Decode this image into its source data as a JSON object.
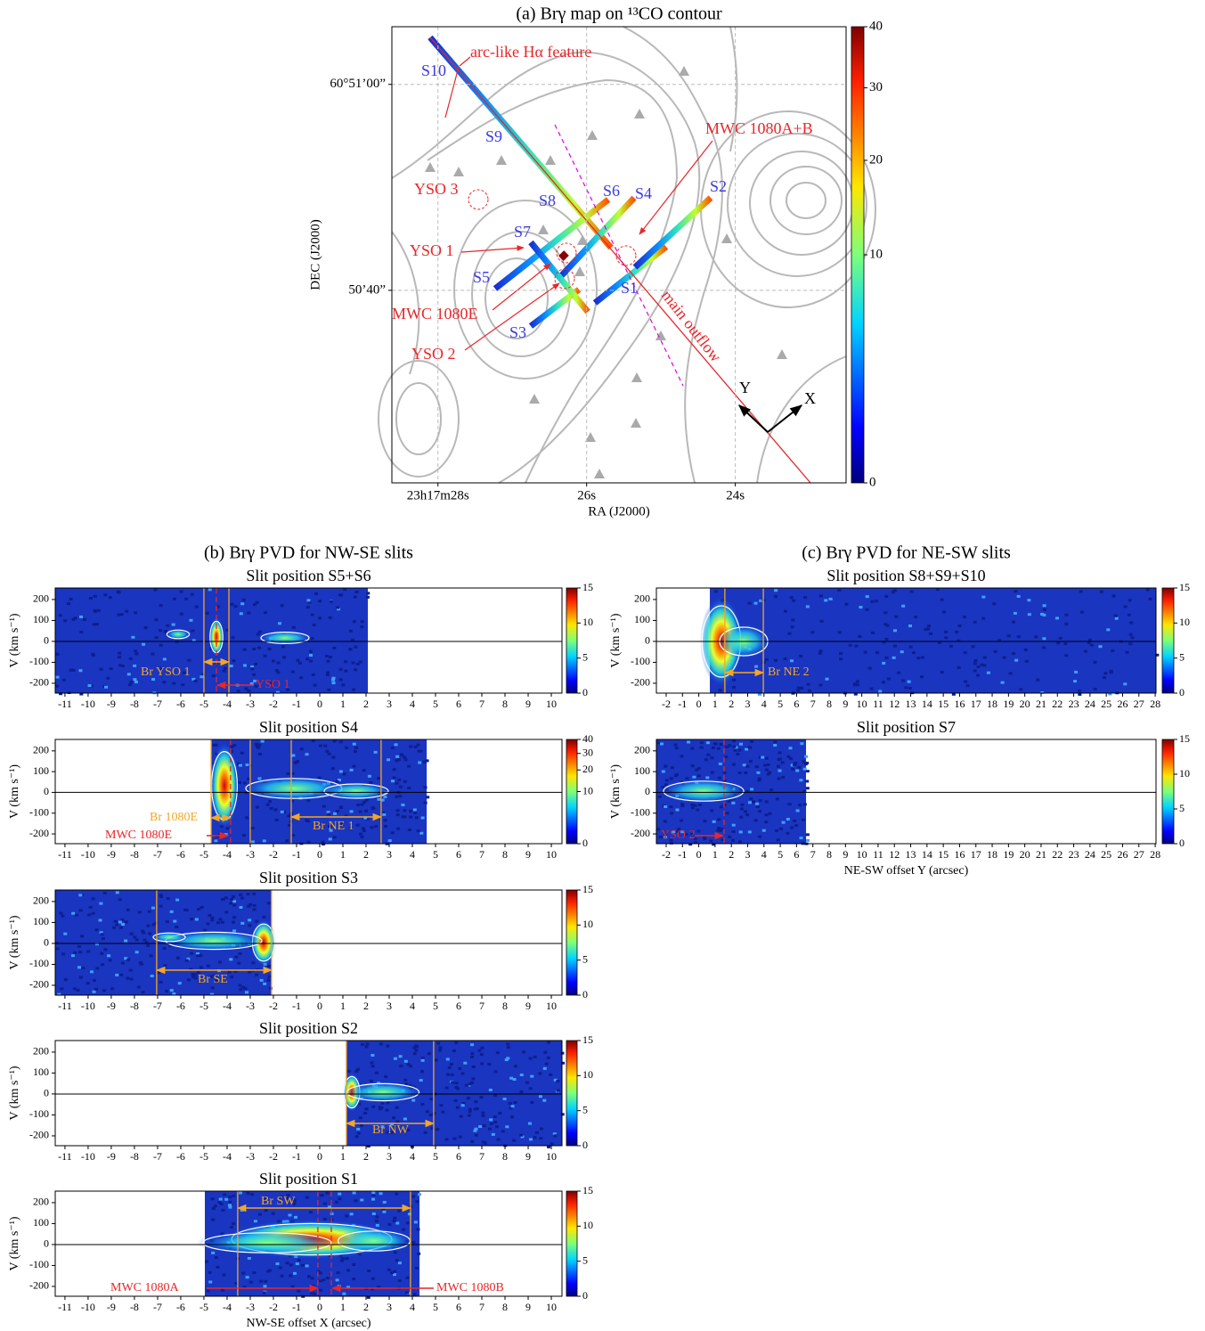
{
  "chart_data": [
    {
      "type": "map",
      "title": "(a) Brγ map on ¹³CO contour",
      "xlabel": "RA (J2000)",
      "ylabel": "DEC (J2000)",
      "xticks": [
        {
          "value": 28,
          "label": "23h17m28s"
        },
        {
          "value": 26,
          "label": "26s"
        },
        {
          "value": 24,
          "label": "24s"
        }
      ],
      "xlim": [
        28.62,
        22.51
      ],
      "yticks": [
        {
          "value": 60,
          "label": "60°51’00”"
        },
        {
          "value": 40,
          "label": "50’40”"
        }
      ],
      "ylim": [
        21.3,
        65.6
      ],
      "grid": true,
      "colorbar": {
        "lim": [
          0,
          40
        ],
        "ticks": [
          0,
          10,
          20,
          30,
          40
        ],
        "scale": "sqrt"
      },
      "annotations": [
        {
          "text": "arc-like Hα feature",
          "color": "#e8262a"
        },
        {
          "text": "MWC 1080A+B",
          "color": "#e8262a"
        },
        {
          "text": "YSO 3",
          "color": "#e8262a"
        },
        {
          "text": "YSO 1",
          "color": "#e8262a"
        },
        {
          "text": "MWC 1080E",
          "color": "#e8262a"
        },
        {
          "text": "YSO 2",
          "color": "#e8262a"
        },
        {
          "text": "main outflow",
          "color": "#e8262a"
        },
        {
          "text": "S10",
          "color": "#3a3ae0"
        },
        {
          "text": "S9",
          "color": "#3a3ae0"
        },
        {
          "text": "S8",
          "color": "#3a3ae0"
        },
        {
          "text": "S7",
          "color": "#3a3ae0"
        },
        {
          "text": "S6",
          "color": "#3a3ae0"
        },
        {
          "text": "S4",
          "color": "#3a3ae0"
        },
        {
          "text": "S2",
          "color": "#3a3ae0"
        },
        {
          "text": "S5",
          "color": "#3a3ae0"
        },
        {
          "text": "S1",
          "color": "#3a3ae0"
        },
        {
          "text": "S3",
          "color": "#3a3ae0"
        },
        {
          "text": "Y",
          "color": "#000000"
        },
        {
          "text": "X",
          "color": "#000000"
        }
      ]
    },
    {
      "type": "pvd",
      "group_title": "(b) Brγ PVD for NW-SE slits",
      "title": "Slit position S5+S6",
      "ylabel": "V (km s⁻¹)",
      "xticks": [
        -11,
        -10,
        -9,
        -8,
        -7,
        -6,
        -5,
        -4,
        -3,
        -2,
        -1,
        0,
        1,
        2,
        3,
        4,
        5,
        6,
        7,
        8,
        9,
        10
      ],
      "xlim": [
        -11.42,
        10.46
      ],
      "yticks": [
        -200,
        -100,
        0,
        100,
        200
      ],
      "ylim": [
        -247,
        255
      ],
      "extent": [
        -11.42,
        2.08
      ],
      "colorbar": {
        "lim": [
          0,
          15
        ],
        "ticks": [
          0,
          5,
          10,
          15
        ],
        "scale": "linear"
      },
      "vlines": [
        {
          "value": -5.0,
          "color": "#f5a623"
        },
        {
          "value": -3.92,
          "color": "#f5a623"
        },
        {
          "value": -4.46,
          "color": "#e8262a",
          "dashed": true
        }
      ],
      "annotations": [
        {
          "text": "Br YSO 1",
          "color": "#f5a623"
        },
        {
          "text": "YSO 1",
          "color": "#e8262a"
        }
      ]
    },
    {
      "type": "pvd",
      "title": "Slit position S4",
      "ylabel": "V (km s⁻¹)",
      "xticks": [
        -11,
        -10,
        -9,
        -8,
        -7,
        -6,
        -5,
        -4,
        -3,
        -2,
        -1,
        0,
        1,
        2,
        3,
        4,
        5,
        6,
        7,
        8,
        9,
        10
      ],
      "xlim": [
        -11.42,
        10.46
      ],
      "yticks": [
        -200,
        -100,
        0,
        100,
        200
      ],
      "ylim": [
        -247,
        255
      ],
      "extent": [
        -4.69,
        4.62
      ],
      "colorbar": {
        "lim": [
          0,
          40
        ],
        "ticks": [
          0,
          10,
          20,
          30,
          40
        ],
        "scale": "sqrt"
      },
      "vlines": [
        {
          "value": -4.69,
          "color": "#f5a623"
        },
        {
          "value": -3.85,
          "color": "#e8262a",
          "dashed": true
        },
        {
          "value": -3.0,
          "color": "#f5a623"
        },
        {
          "value": -1.23,
          "color": "#f5a623"
        },
        {
          "value": 2.65,
          "color": "#f5a623"
        }
      ],
      "annotations": [
        {
          "text": "Br 1080E",
          "color": "#f5a623"
        },
        {
          "text": "MWC 1080E",
          "color": "#e8262a"
        },
        {
          "text": "Br NE 1",
          "color": "#f5a623"
        }
      ]
    },
    {
      "type": "pvd",
      "title": "Slit position S3",
      "ylabel": "V (km s⁻¹)",
      "xticks": [
        -11,
        -10,
        -9,
        -8,
        -7,
        -6,
        -5,
        -4,
        -3,
        -2,
        -1,
        0,
        1,
        2,
        3,
        4,
        5,
        6,
        7,
        8,
        9,
        10
      ],
      "xlim": [
        -11.42,
        10.46
      ],
      "yticks": [
        -200,
        -100,
        0,
        100,
        200
      ],
      "ylim": [
        -247,
        255
      ],
      "extent": [
        -11.42,
        -2.08
      ],
      "colorbar": {
        "lim": [
          0,
          15
        ],
        "ticks": [
          0,
          5,
          10,
          15
        ],
        "scale": "linear"
      },
      "vlines": [
        {
          "value": -7.04,
          "color": "#f5a623"
        },
        {
          "value": -2.08,
          "color": "#f5a623"
        }
      ],
      "annotations": [
        {
          "text": "Br SE",
          "color": "#f5a623"
        }
      ]
    },
    {
      "type": "pvd",
      "title": "Slit position S2",
      "ylabel": "V (km s⁻¹)",
      "xticks": [
        -11,
        -10,
        -9,
        -8,
        -7,
        -6,
        -5,
        -4,
        -3,
        -2,
        -1,
        0,
        1,
        2,
        3,
        4,
        5,
        6,
        7,
        8,
        9,
        10
      ],
      "xlim": [
        -11.42,
        10.46
      ],
      "yticks": [
        -200,
        -100,
        0,
        100,
        200
      ],
      "ylim": [
        -247,
        255
      ],
      "extent": [
        1.15,
        10.46
      ],
      "colorbar": {
        "lim": [
          0,
          15
        ],
        "ticks": [
          0,
          5,
          10,
          15
        ],
        "scale": "linear"
      },
      "vlines": [
        {
          "value": 1.15,
          "color": "#f5a623"
        },
        {
          "value": 4.92,
          "color": "#f5a623"
        }
      ],
      "annotations": [
        {
          "text": "Br NW",
          "color": "#f5a623"
        }
      ]
    },
    {
      "type": "pvd",
      "title": "Slit position S1",
      "ylabel": "V (km s⁻¹)",
      "xlabel": "NW-SE offset X (arcsec)",
      "xticks": [
        -11,
        -10,
        -9,
        -8,
        -7,
        -6,
        -5,
        -4,
        -3,
        -2,
        -1,
        0,
        1,
        2,
        3,
        4,
        5,
        6,
        7,
        8,
        9,
        10
      ],
      "xlim": [
        -11.42,
        10.46
      ],
      "yticks": [
        -200,
        -100,
        0,
        100,
        200
      ],
      "ylim": [
        -247,
        255
      ],
      "extent": [
        -4.96,
        4.31
      ],
      "colorbar": {
        "lim": [
          0,
          15
        ],
        "ticks": [
          0,
          5,
          10,
          15
        ],
        "scale": "linear"
      },
      "vlines": [
        {
          "value": -3.54,
          "color": "#f5a623"
        },
        {
          "value": 3.92,
          "color": "#f5a623"
        },
        {
          "value": -0.08,
          "color": "#e8262a",
          "dashed": true
        },
        {
          "value": 0.5,
          "color": "#e8262a",
          "dashed": true
        }
      ],
      "annotations": [
        {
          "text": "Br SW",
          "color": "#f5a623"
        },
        {
          "text": "MWC 1080A",
          "color": "#e8262a"
        },
        {
          "text": "MWC 1080B",
          "color": "#e8262a"
        }
      ]
    },
    {
      "type": "pvd",
      "group_title": "(c) Brγ PVD for NE-SW slits",
      "title": "Slit position S8+S9+S10",
      "ylabel": "V (km s⁻¹)",
      "xticks": [
        -2,
        -1,
        0,
        1,
        2,
        3,
        4,
        5,
        6,
        7,
        8,
        9,
        10,
        11,
        12,
        13,
        14,
        15,
        16,
        17,
        18,
        19,
        20,
        21,
        22,
        23,
        24,
        25,
        26,
        27,
        28
      ],
      "xlim": [
        -2.6,
        28.05
      ],
      "yticks": [
        -200,
        -100,
        0,
        100,
        200
      ],
      "ylim": [
        -247,
        255
      ],
      "extent": [
        0.68,
        28.05
      ],
      "colorbar": {
        "lim": [
          0,
          15
        ],
        "ticks": [
          0,
          5,
          10,
          15
        ],
        "scale": "linear"
      },
      "vlines": [
        {
          "value": 1.6,
          "color": "#f5a623"
        },
        {
          "value": 3.96,
          "color": "#f5a623"
        }
      ],
      "annotations": [
        {
          "text": "Br NE 2",
          "color": "#f5a623"
        }
      ]
    },
    {
      "type": "pvd",
      "title": "Slit position S7",
      "ylabel": "V (km s⁻¹)",
      "xlabel": "NE-SW offset Y (arcsec)",
      "xticks": [
        -2,
        -1,
        0,
        1,
        2,
        3,
        4,
        5,
        6,
        7,
        8,
        9,
        10,
        11,
        12,
        13,
        14,
        15,
        16,
        17,
        18,
        19,
        20,
        21,
        22,
        23,
        24,
        25,
        26,
        27,
        28
      ],
      "xlim": [
        -2.6,
        28.05
      ],
      "yticks": [
        -200,
        -100,
        0,
        100,
        200
      ],
      "ylim": [
        -247,
        255
      ],
      "extent": [
        -2.6,
        6.58
      ],
      "colorbar": {
        "lim": [
          0,
          15
        ],
        "ticks": [
          0,
          5,
          10,
          15
        ],
        "scale": "linear"
      },
      "vlines": [
        {
          "value": 1.55,
          "color": "#e8262a",
          "dashed": true
        }
      ],
      "annotations": [
        {
          "text": "YSO 2",
          "color": "#e8262a"
        }
      ]
    }
  ]
}
